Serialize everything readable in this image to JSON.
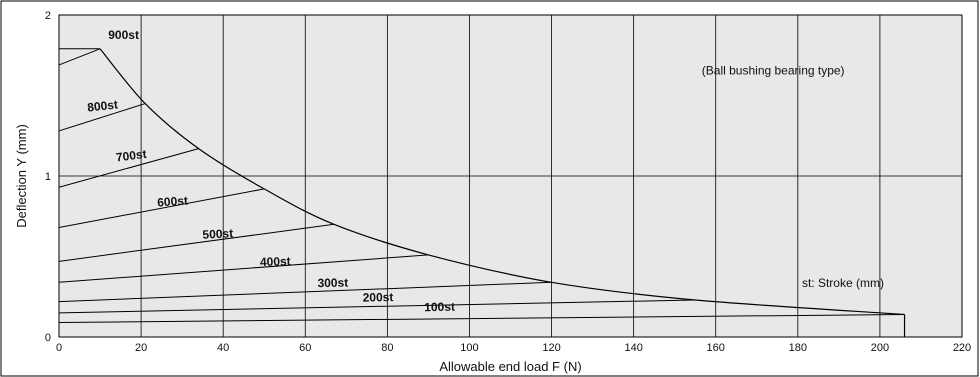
{
  "chart_data": {
    "type": "line",
    "xlabel": "Allowable end load F (N)",
    "ylabel": "Deflection Y (mm)",
    "xlim": [
      0,
      220
    ],
    "ylim": [
      0,
      2
    ],
    "x_ticks": [
      0,
      20,
      40,
      60,
      80,
      100,
      120,
      140,
      160,
      180,
      200,
      220
    ],
    "y_ticks": [
      0,
      1,
      2
    ],
    "grid": true,
    "annotations": [
      "(Ball bushing bearing type)",
      "st: Stroke (mm)"
    ],
    "envelope": {
      "x": [
        10,
        21,
        34,
        50,
        67,
        90,
        120,
        155,
        206
      ],
      "y": [
        1.79,
        1.45,
        1.17,
        0.92,
        0.7,
        0.51,
        0.34,
        0.23,
        0.14
      ]
    },
    "series": [
      {
        "name": "900st",
        "x": [
          0,
          10
        ],
        "y": [
          1.69,
          1.79
        ],
        "label_at": [
          12,
          1.85
        ],
        "label_angle": 0
      },
      {
        "name": "800st",
        "x": [
          0,
          21
        ],
        "y": [
          1.28,
          1.45
        ],
        "label_at": [
          7,
          1.4
        ],
        "label_angle": -6
      },
      {
        "name": "700st",
        "x": [
          0,
          34
        ],
        "y": [
          0.93,
          1.17
        ],
        "label_at": [
          14,
          1.09
        ],
        "label_angle": -7
      },
      {
        "name": "600st",
        "x": [
          0,
          50
        ],
        "y": [
          0.68,
          0.92
        ],
        "label_at": [
          24,
          0.81
        ],
        "label_angle": -4
      },
      {
        "name": "500st",
        "x": [
          0,
          67
        ],
        "y": [
          0.47,
          0.7
        ],
        "label_at": [
          35,
          0.61
        ],
        "label_angle": -3
      },
      {
        "name": "400st",
        "x": [
          0,
          90
        ],
        "y": [
          0.34,
          0.51
        ],
        "label_at": [
          49,
          0.44
        ],
        "label_angle": -2
      },
      {
        "name": "300st",
        "x": [
          0,
          120
        ],
        "y": [
          0.22,
          0.34
        ],
        "label_at": [
          63,
          0.31
        ],
        "label_angle": -1
      },
      {
        "name": "200st",
        "x": [
          0,
          155
        ],
        "y": [
          0.15,
          0.23
        ],
        "label_at": [
          74,
          0.22
        ],
        "label_angle": -1
      },
      {
        "name": "100st",
        "x": [
          0,
          206
        ],
        "y": [
          0.09,
          0.14
        ],
        "label_at": [
          89,
          0.16
        ],
        "label_angle": -1
      }
    ],
    "end_drop": {
      "x": 206,
      "from": 0.14,
      "to": 0
    }
  }
}
